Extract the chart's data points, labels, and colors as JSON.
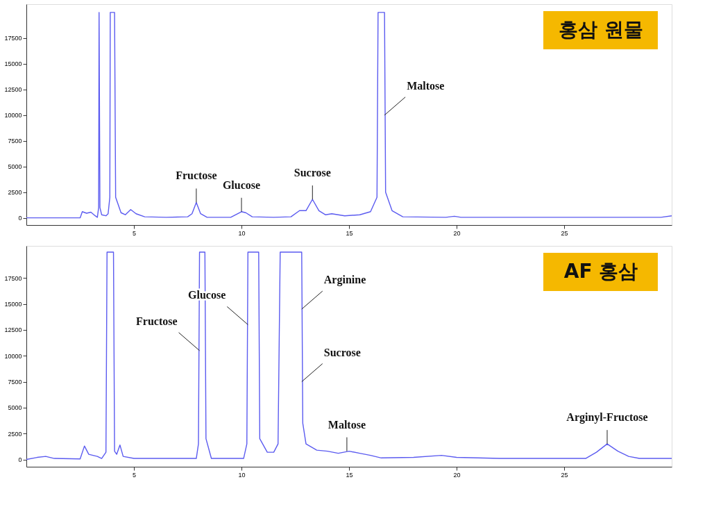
{
  "chart_data": [
    {
      "type": "line",
      "title": "홍삼 원물",
      "xlim": [
        0,
        30
      ],
      "ylim": [
        -700,
        20800
      ],
      "xticks": [
        5,
        10,
        15,
        20,
        25
      ],
      "yticks": [
        0,
        2500,
        5000,
        7500,
        10000,
        12500,
        15000,
        17500
      ],
      "grid": false,
      "marker": "none",
      "line_style": "solid",
      "x": [
        0,
        2.5,
        2.6,
        2.8,
        3.0,
        3.2,
        3.3,
        3.36,
        3.38,
        3.42,
        3.5,
        3.7,
        3.8,
        3.88,
        3.9,
        4.1,
        4.15,
        4.4,
        4.6,
        4.85,
        5.1,
        5.5,
        6.5,
        7.5,
        7.7,
        7.9,
        8.1,
        8.4,
        9.5,
        10.0,
        10.2,
        10.5,
        11.5,
        12.3,
        12.7,
        13.0,
        13.3,
        13.6,
        13.9,
        14.2,
        14.8,
        15.5,
        16.0,
        16.3,
        16.35,
        16.65,
        16.7,
        17.0,
        17.5,
        19.5,
        19.9,
        20.2,
        29.5,
        30
      ],
      "series": [
        {
          "color": "#5b5bf0",
          "values": [
            0,
            0,
            600,
            450,
            550,
            200,
            50,
            1000,
            20000,
            1000,
            300,
            200,
            400,
            2000,
            20000,
            20000,
            2000,
            500,
            300,
            800,
            400,
            100,
            50,
            100,
            400,
            1500,
            400,
            50,
            50,
            600,
            500,
            100,
            50,
            100,
            700,
            700,
            1800,
            700,
            300,
            400,
            200,
            300,
            600,
            2000,
            20000,
            20000,
            2500,
            700,
            100,
            50,
            150,
            50,
            50,
            200
          ]
        }
      ],
      "annotations": [
        {
          "text": "Fructose",
          "x": 7.9,
          "y": 1500
        },
        {
          "text": "Glucose",
          "x": 10.0,
          "y": 600
        },
        {
          "text": "Sucrose",
          "x": 13.3,
          "y": 1800
        },
        {
          "text": "Maltose",
          "x": 16.65,
          "y": 10000
        }
      ]
    },
    {
      "type": "line",
      "title": "AF 홍삼",
      "xlim": [
        0,
        30
      ],
      "ylim": [
        -700,
        20600
      ],
      "xticks": [
        5,
        10,
        15,
        20,
        25
      ],
      "yticks": [
        0,
        2500,
        5000,
        7500,
        10000,
        12500,
        15000,
        17500
      ],
      "grid": false,
      "marker": "none",
      "line_style": "solid",
      "x": [
        0,
        0.5,
        0.9,
        1.3,
        2.5,
        2.7,
        2.9,
        3.3,
        3.5,
        3.7,
        3.75,
        4.05,
        4.1,
        4.2,
        4.35,
        4.5,
        5,
        7.9,
        8.0,
        8.05,
        8.3,
        8.35,
        8.6,
        10.1,
        10.25,
        10.3,
        10.8,
        10.85,
        11.2,
        11.5,
        11.7,
        11.8,
        12.8,
        12.85,
        13.0,
        13.5,
        14.0,
        14.5,
        15.0,
        15.5,
        16.0,
        16.5,
        18,
        19.3,
        20,
        22,
        26,
        26.5,
        27.0,
        27.5,
        28,
        28.5,
        30
      ],
      "series": [
        {
          "color": "#5b5bf0",
          "values": [
            0,
            200,
            300,
            100,
            50,
            1300,
            500,
            300,
            100,
            700,
            20000,
            20000,
            800,
            500,
            1400,
            300,
            100,
            100,
            1500,
            20000,
            20000,
            2000,
            100,
            100,
            1500,
            20000,
            20000,
            2000,
            700,
            700,
            1500,
            20000,
            20000,
            3500,
            1500,
            900,
            800,
            600,
            800,
            600,
            400,
            150,
            200,
            400,
            200,
            100,
            100,
            700,
            1500,
            800,
            300,
            100,
            100
          ]
        }
      ],
      "annotations": [
        {
          "text": "Fructose",
          "x": 8.05,
          "y": 10500
        },
        {
          "text": "Glucose",
          "x": 10.3,
          "y": 13000
        },
        {
          "text": "Arginine",
          "x": 12.8,
          "y": 14500
        },
        {
          "text": "Sucrose",
          "x": 12.8,
          "y": 7500
        },
        {
          "text": "Maltose",
          "x": 14.9,
          "y": 800
        },
        {
          "text": "Arginyl-Fructose",
          "x": 27.0,
          "y": 1500
        }
      ]
    }
  ]
}
